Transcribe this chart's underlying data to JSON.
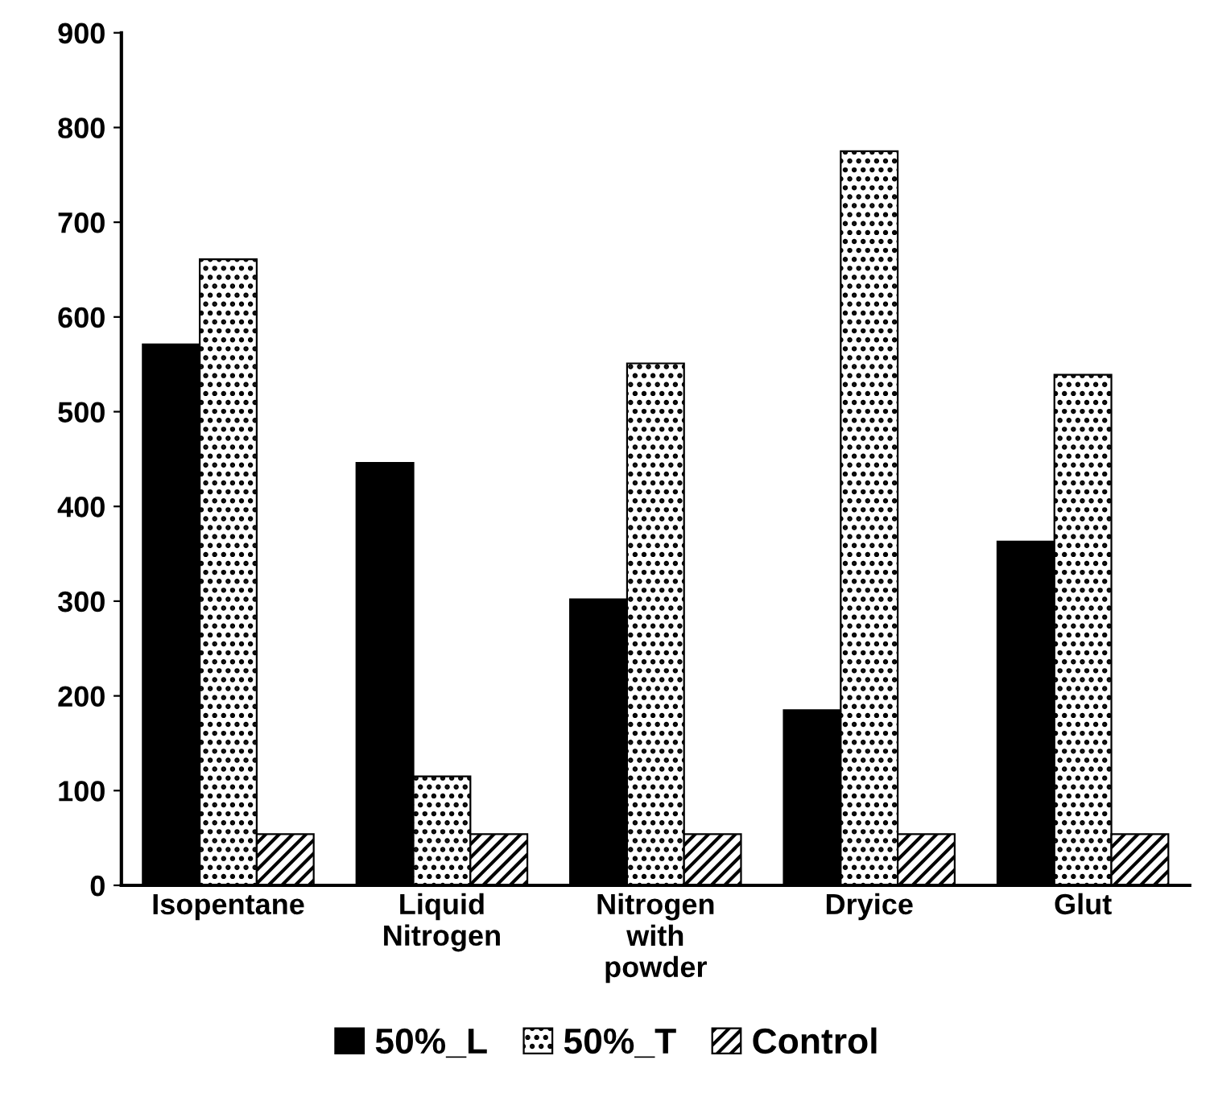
{
  "chart_data": {
    "type": "bar",
    "categories": [
      "Isopentane",
      "Liquid\nNitrogen",
      "Nitrogen\nwith\npowder",
      "Dryice",
      "Glut"
    ],
    "series": [
      {
        "name": "50%_L",
        "color": "#000000",
        "values": [
          571,
          446,
          302,
          185,
          363
        ]
      },
      {
        "name": "50%_T",
        "color": "#000000",
        "values": [
          661,
          115,
          551,
          775,
          539
        ]
      },
      {
        "name": "Control",
        "color": "#000000",
        "values": [
          54,
          54,
          54,
          54,
          54
        ]
      }
    ],
    "ylim": [
      0,
      900
    ],
    "yticks": [
      0,
      100,
      200,
      300,
      400,
      500,
      600,
      700,
      800,
      900
    ],
    "grid": false,
    "legend": "bottom"
  }
}
